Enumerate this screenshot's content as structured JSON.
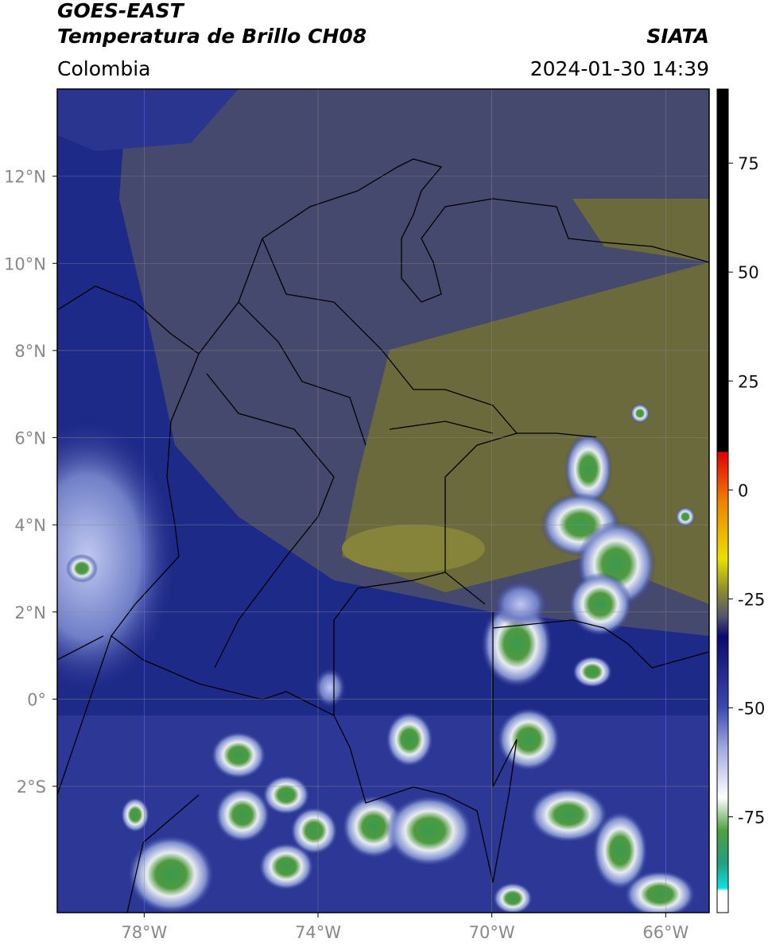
{
  "header": {
    "title": "GOES-EAST",
    "subtitle": "Temperatura de Brillo CH08",
    "source": "SIATA",
    "region": "Colombia",
    "datetime": "2024-01-30 14:39"
  },
  "map": {
    "xlim": [
      -80,
      -65
    ],
    "ylim": [
      -4.9,
      14
    ],
    "xticks": [
      {
        "value": -78,
        "label": "78°W"
      },
      {
        "value": -74,
        "label": "74°W"
      },
      {
        "value": -70,
        "label": "70°W"
      },
      {
        "value": -66,
        "label": "66°W"
      }
    ],
    "yticks": [
      {
        "value": 12,
        "label": "12°N"
      },
      {
        "value": 10,
        "label": "10°N"
      },
      {
        "value": 8,
        "label": "8°N"
      },
      {
        "value": 6,
        "label": "6°N"
      },
      {
        "value": 4,
        "label": "4°N"
      },
      {
        "value": 2,
        "label": "2°N"
      },
      {
        "value": 0,
        "label": "0°"
      },
      {
        "value": -2,
        "label": "2°S"
      }
    ]
  },
  "colorbar": {
    "ylim": [
      -97,
      92
    ],
    "yticks": [
      75,
      50,
      25,
      0,
      -25,
      -50,
      -75
    ]
  }
}
